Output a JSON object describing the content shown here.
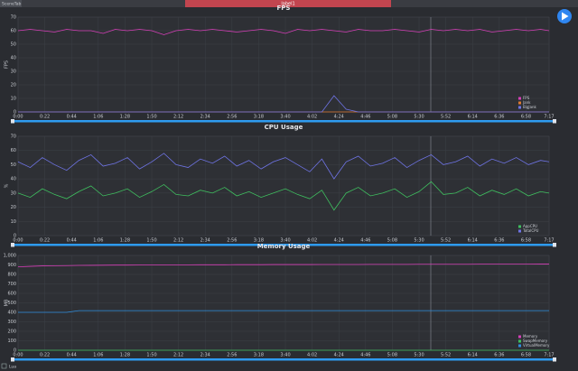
{
  "header": {
    "tab": "SceneTab",
    "label": "label1"
  },
  "footer": {
    "option": "Lua"
  },
  "chart_data": [
    {
      "type": "line",
      "title": "FPS",
      "ylabel": "FPS",
      "x": [
        0,
        10,
        20,
        30,
        40,
        50,
        60,
        70,
        80,
        90,
        100,
        110,
        120,
        130,
        140,
        150,
        160,
        170,
        180,
        190,
        200,
        210,
        220,
        230,
        240,
        250,
        260,
        270,
        280,
        290,
        300,
        310,
        320,
        330,
        340,
        350,
        360,
        370,
        380,
        390,
        400,
        410,
        420,
        430,
        437
      ],
      "xlim": [
        0,
        437
      ],
      "xticks": [
        {
          "value": 0,
          "label": "0:00"
        },
        {
          "value": 22,
          "label": "0:22"
        },
        {
          "value": 44,
          "label": "0:44"
        },
        {
          "value": 66,
          "label": "1:06"
        },
        {
          "value": 88,
          "label": "1:28"
        },
        {
          "value": 110,
          "label": "1:50"
        },
        {
          "value": 132,
          "label": "2:12"
        },
        {
          "value": 154,
          "label": "2:34"
        },
        {
          "value": 176,
          "label": "2:56"
        },
        {
          "value": 198,
          "label": "3:18"
        },
        {
          "value": 220,
          "label": "3:40"
        },
        {
          "value": 242,
          "label": "4:02"
        },
        {
          "value": 264,
          "label": "4:24"
        },
        {
          "value": 286,
          "label": "4:46"
        },
        {
          "value": 308,
          "label": "5:08"
        },
        {
          "value": 330,
          "label": "5:30"
        },
        {
          "value": 352,
          "label": "5:52"
        },
        {
          "value": 374,
          "label": "6:14"
        },
        {
          "value": 396,
          "label": "6:36"
        },
        {
          "value": 418,
          "label": "6:58"
        },
        {
          "value": 437,
          "label": "7:17"
        }
      ],
      "ylim": [
        0,
        70
      ],
      "yticks": [
        0,
        10,
        20,
        30,
        40,
        50,
        60,
        70
      ],
      "grid": true,
      "series": [
        {
          "name": "FPS",
          "color": "#d63fb8",
          "values": [
            60,
            61,
            60,
            59,
            61,
            60,
            60,
            58,
            61,
            60,
            61,
            60,
            57,
            60,
            61,
            60,
            61,
            60,
            59,
            60,
            61,
            60,
            58,
            61,
            60,
            61,
            60,
            59,
            61,
            60,
            60,
            61,
            60,
            59,
            61,
            60,
            61,
            60,
            61,
            59,
            60,
            61,
            60,
            61,
            60
          ]
        },
        {
          "name": "Jank",
          "color": "#e07a30",
          "values": [
            0,
            0,
            0,
            0,
            0,
            0,
            0,
            0,
            0,
            0,
            0,
            0,
            0,
            0,
            0,
            0,
            0,
            0,
            0,
            0,
            0,
            0,
            0,
            0,
            0,
            0,
            0,
            0,
            0,
            0,
            0,
            0,
            0,
            0,
            0,
            0,
            0,
            0,
            0,
            0,
            0,
            0,
            0,
            0,
            0
          ]
        },
        {
          "name": "BigJank",
          "color": "#6f74e6",
          "values": [
            0,
            0,
            0,
            0,
            0,
            0,
            0,
            0,
            0,
            0,
            0,
            0,
            0,
            0,
            0,
            0,
            0,
            0,
            0,
            0,
            0,
            0,
            0,
            0,
            0,
            0,
            12,
            2,
            0,
            0,
            0,
            0,
            0,
            0,
            0,
            0,
            0,
            0,
            0,
            0,
            0,
            0,
            0,
            0,
            0
          ]
        }
      ]
    },
    {
      "type": "line",
      "title": "CPU Usage",
      "ylabel": "%",
      "x": [
        0,
        10,
        20,
        30,
        40,
        50,
        60,
        70,
        80,
        90,
        100,
        110,
        120,
        130,
        140,
        150,
        160,
        170,
        180,
        190,
        200,
        210,
        220,
        230,
        240,
        250,
        260,
        270,
        280,
        290,
        300,
        310,
        320,
        330,
        340,
        350,
        360,
        370,
        380,
        390,
        400,
        410,
        420,
        430,
        437
      ],
      "xlim": [
        0,
        437
      ],
      "xticks": [
        {
          "value": 0,
          "label": "0:00"
        },
        {
          "value": 22,
          "label": "0:22"
        },
        {
          "value": 44,
          "label": "0:44"
        },
        {
          "value": 66,
          "label": "1:06"
        },
        {
          "value": 88,
          "label": "1:28"
        },
        {
          "value": 110,
          "label": "1:50"
        },
        {
          "value": 132,
          "label": "2:12"
        },
        {
          "value": 154,
          "label": "2:34"
        },
        {
          "value": 176,
          "label": "2:56"
        },
        {
          "value": 198,
          "label": "3:18"
        },
        {
          "value": 220,
          "label": "3:40"
        },
        {
          "value": 242,
          "label": "4:02"
        },
        {
          "value": 264,
          "label": "4:24"
        },
        {
          "value": 286,
          "label": "4:46"
        },
        {
          "value": 308,
          "label": "5:08"
        },
        {
          "value": 330,
          "label": "5:30"
        },
        {
          "value": 352,
          "label": "5:52"
        },
        {
          "value": 374,
          "label": "6:14"
        },
        {
          "value": 396,
          "label": "6:36"
        },
        {
          "value": 418,
          "label": "6:58"
        },
        {
          "value": 437,
          "label": "7:17"
        }
      ],
      "ylim": [
        0,
        70
      ],
      "yticks": [
        0,
        10,
        20,
        30,
        40,
        50,
        60,
        70
      ],
      "grid": true,
      "series": [
        {
          "name": "AppCPU",
          "color": "#3fbf5f",
          "values": [
            30,
            27,
            33,
            29,
            26,
            31,
            35,
            28,
            30,
            33,
            27,
            31,
            36,
            29,
            28,
            32,
            30,
            34,
            28,
            31,
            27,
            30,
            33,
            29,
            26,
            32,
            18,
            30,
            34,
            28,
            30,
            33,
            27,
            31,
            38,
            29,
            30,
            34,
            28,
            32,
            29,
            33,
            28,
            31,
            30
          ]
        },
        {
          "name": "TotalCPU",
          "color": "#6f74e6",
          "values": [
            52,
            48,
            55,
            50,
            46,
            53,
            57,
            49,
            51,
            55,
            47,
            52,
            58,
            50,
            48,
            54,
            51,
            56,
            49,
            53,
            47,
            52,
            55,
            50,
            45,
            54,
            40,
            52,
            56,
            49,
            51,
            55,
            48,
            53,
            57,
            50,
            52,
            56,
            49,
            54,
            51,
            55,
            50,
            53,
            52
          ]
        }
      ]
    },
    {
      "type": "line",
      "title": "Memory Usage",
      "ylabel": "MB",
      "x": [
        0,
        10,
        20,
        30,
        40,
        50,
        60,
        70,
        80,
        90,
        100,
        110,
        120,
        130,
        140,
        150,
        160,
        170,
        180,
        190,
        200,
        210,
        220,
        230,
        240,
        250,
        260,
        270,
        280,
        290,
        300,
        310,
        320,
        330,
        340,
        350,
        360,
        370,
        380,
        390,
        400,
        410,
        420,
        430,
        437
      ],
      "xlim": [
        0,
        437
      ],
      "xticks": [
        {
          "value": 0,
          "label": "0:00"
        },
        {
          "value": 22,
          "label": "0:22"
        },
        {
          "value": 44,
          "label": "0:44"
        },
        {
          "value": 66,
          "label": "1:06"
        },
        {
          "value": 88,
          "label": "1:28"
        },
        {
          "value": 110,
          "label": "1:50"
        },
        {
          "value": 132,
          "label": "2:12"
        },
        {
          "value": 154,
          "label": "2:34"
        },
        {
          "value": 176,
          "label": "2:56"
        },
        {
          "value": 198,
          "label": "3:18"
        },
        {
          "value": 220,
          "label": "3:40"
        },
        {
          "value": 242,
          "label": "4:02"
        },
        {
          "value": 264,
          "label": "4:24"
        },
        {
          "value": 286,
          "label": "4:46"
        },
        {
          "value": 308,
          "label": "5:08"
        },
        {
          "value": 330,
          "label": "5:30"
        },
        {
          "value": 352,
          "label": "5:52"
        },
        {
          "value": 374,
          "label": "6:14"
        },
        {
          "value": 396,
          "label": "6:36"
        },
        {
          "value": 418,
          "label": "6:58"
        },
        {
          "value": 437,
          "label": "7:17"
        }
      ],
      "ylim": [
        0,
        1000
      ],
      "yticks": [
        0,
        100,
        200,
        300,
        400,
        500,
        600,
        700,
        800,
        900,
        {
          "value": 1000,
          "label": "1,000"
        }
      ],
      "grid": true,
      "series": [
        {
          "name": "Memory",
          "color": "#d63fb8",
          "values": [
            880,
            885,
            890,
            892,
            893,
            895,
            896,
            897,
            898,
            898,
            899,
            900,
            900,
            901,
            901,
            902,
            902,
            902,
            903,
            903,
            903,
            904,
            904,
            904,
            904,
            905,
            905,
            905,
            905,
            906,
            906,
            906,
            906,
            907,
            907,
            907,
            907,
            907,
            908,
            908,
            908,
            908,
            908,
            909,
            909
          ]
        },
        {
          "name": "SwapMemory",
          "color": "#3fbf5f",
          "values": [
            0,
            0,
            0,
            0,
            0,
            0,
            0,
            0,
            0,
            0,
            0,
            0,
            0,
            0,
            0,
            0,
            0,
            0,
            0,
            0,
            0,
            0,
            0,
            0,
            0,
            0,
            0,
            0,
            0,
            0,
            0,
            0,
            0,
            0,
            0,
            0,
            0,
            0,
            0,
            0,
            0,
            0,
            0,
            0,
            0
          ]
        },
        {
          "name": "VirtualMemory",
          "color": "#2f8fe0",
          "values": [
            400,
            400,
            400,
            400,
            400,
            418,
            418,
            418,
            418,
            418,
            418,
            418,
            418,
            418,
            418,
            418,
            418,
            418,
            418,
            418,
            418,
            418,
            418,
            418,
            418,
            418,
            418,
            418,
            418,
            418,
            418,
            418,
            418,
            418,
            418,
            418,
            418,
            418,
            418,
            418,
            418,
            418,
            418,
            418,
            418
          ]
        }
      ]
    }
  ]
}
